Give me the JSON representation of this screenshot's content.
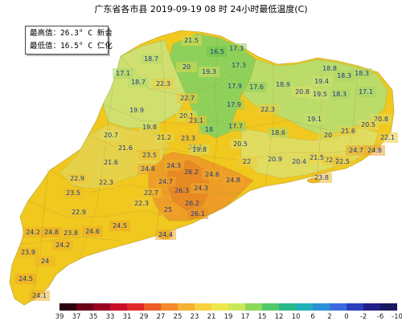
{
  "title": "广东省各市县 2019-09-19 08 时 24小时最低温度(C)",
  "info": {
    "max_line": "最高值：26.3° C 新会",
    "min_line": "最低值：16.5° C 仁化"
  },
  "map": {
    "region_fill": "#f0c81e",
    "stations": [
      {
        "v": "21.5",
        "c": "#e6d84a"
      },
      {
        "v": "16.5",
        "c": "#6cc24a"
      },
      {
        "v": "17.3",
        "c": "#8fd05a"
      },
      {
        "v": "18.7",
        "c": "#b6d86a"
      },
      {
        "v": "20",
        "c": "#d8d85a"
      },
      {
        "v": "19.3",
        "c": "#d4dc6a"
      },
      {
        "v": "17.3",
        "c": "#8fd05a"
      },
      {
        "v": "18.8",
        "c": "#b8dc6a"
      },
      {
        "v": "17.1",
        "c": "#a8d468"
      },
      {
        "v": "18.7",
        "c": "#b6d86a"
      },
      {
        "v": "22.3",
        "c": "#eecb3a"
      },
      {
        "v": "18.3",
        "c": "#aed466"
      },
      {
        "v": "19.4",
        "c": "#cce070"
      },
      {
        "v": "17.6",
        "c": "#8fd05a"
      },
      {
        "v": "18.9",
        "c": "#bcdc6a"
      },
      {
        "v": "18.3",
        "c": "#aed466"
      },
      {
        "v": "22.7",
        "c": "#eec534"
      },
      {
        "v": "20.8",
        "c": "#e0dc60"
      },
      {
        "v": "19.5",
        "c": "#cfe070"
      },
      {
        "v": "17.9",
        "c": "#90d05c"
      },
      {
        "v": "18.3",
        "c": "#aed466"
      },
      {
        "v": "17.1",
        "c": "#a8d468"
      },
      {
        "v": "19.9",
        "c": "#d6dc66"
      },
      {
        "v": "22.3",
        "c": "#eecb3a"
      },
      {
        "v": "20.1",
        "c": "#dcdc60"
      },
      {
        "v": "17.9",
        "c": "#90d05c"
      },
      {
        "v": "19.1",
        "c": "#c8dc6a"
      },
      {
        "v": "20.8",
        "c": "#e0dc60"
      },
      {
        "v": "19.8",
        "c": "#d4dc66"
      },
      {
        "v": "23.1",
        "c": "#f0c02e"
      },
      {
        "v": "18",
        "c": "#96d060"
      },
      {
        "v": "17.7",
        "c": "#90d05c"
      },
      {
        "v": "21.6",
        "c": "#e6d24a"
      },
      {
        "v": "20.5",
        "c": "#dedc60"
      },
      {
        "v": "20.7",
        "c": "#e0dc60"
      },
      {
        "v": "21.2",
        "c": "#e4d650"
      },
      {
        "v": "23.3",
        "c": "#f0be2c"
      },
      {
        "v": "18.6",
        "c": "#b4d868"
      },
      {
        "v": "20",
        "c": "#d8d85a"
      },
      {
        "v": "21.6",
        "c": "#e6d24a"
      },
      {
        "v": "23.1",
        "c": "#f0c02e"
      },
      {
        "v": "23.5",
        "c": "#f0bc2a"
      },
      {
        "v": "19.8",
        "c": "#d4dc66"
      },
      {
        "v": "20.5",
        "c": "#dedc60"
      },
      {
        "v": "22.1",
        "c": "#eccc3c"
      },
      {
        "v": "24.7",
        "c": "#eea628"
      },
      {
        "v": "24.8",
        "c": "#eea428"
      },
      {
        "v": "21.6",
        "c": "#e6d24a"
      },
      {
        "v": "22.5",
        "c": "#eec836"
      },
      {
        "v": "24.3",
        "c": "#efac28"
      },
      {
        "v": "26.2",
        "c": "#e88a24"
      },
      {
        "v": "24.6",
        "c": "#eea828"
      },
      {
        "v": "22",
        "c": "#eace3e"
      },
      {
        "v": "20.9",
        "c": "#e0da5c"
      },
      {
        "v": "20.4",
        "c": "#ddd860"
      },
      {
        "v": "21.5",
        "c": "#e6d24a"
      },
      {
        "v": "22.5",
        "c": "#eec836"
      },
      {
        "v": "22.9",
        "c": "#eec432"
      },
      {
        "v": "22.3",
        "c": "#eecb3a"
      },
      {
        "v": "24.7",
        "c": "#eea628"
      },
      {
        "v": "26.3",
        "c": "#e88822"
      },
      {
        "v": "24.3",
        "c": "#efac28"
      },
      {
        "v": "24.8",
        "c": "#eea428"
      },
      {
        "v": "23.8",
        "c": "#f0b82a"
      },
      {
        "v": "23.5",
        "c": "#f0bc2a"
      },
      {
        "v": "22.7",
        "c": "#eec534"
      },
      {
        "v": "22.3",
        "c": "#eecb3a"
      },
      {
        "v": "26.2",
        "c": "#e88a24"
      },
      {
        "v": "24.8",
        "c": "#eea428"
      },
      {
        "v": "25",
        "c": "#eea228"
      },
      {
        "v": "26.1",
        "c": "#e88c24"
      },
      {
        "v": "22.9",
        "c": "#eec432"
      },
      {
        "v": "24.2",
        "c": "#efae28"
      },
      {
        "v": "24.8",
        "c": "#eea428"
      },
      {
        "v": "23.8",
        "c": "#f0b82a"
      },
      {
        "v": "24.6",
        "c": "#eea828"
      },
      {
        "v": "24.5",
        "c": "#eea628"
      },
      {
        "v": "24.2",
        "c": "#efae28"
      },
      {
        "v": "24.4",
        "c": "#efaa28"
      },
      {
        "v": "23.9",
        "c": "#f0b62a"
      },
      {
        "v": "24",
        "c": "#efb228"
      },
      {
        "v": "24.5",
        "c": "#eea628"
      },
      {
        "v": "24.1",
        "c": "#efb028"
      }
    ]
  },
  "legend": {
    "colors": [
      "#2a0010",
      "#6a0018",
      "#9a0020",
      "#c8102a",
      "#e0282a",
      "#ee5a28",
      "#f48a2a",
      "#f6b032",
      "#f8d23c",
      "#f0e84a",
      "#cce85a",
      "#8ed85a",
      "#50c868",
      "#2ab88a",
      "#22b0b8",
      "#2a90d8",
      "#3a6ae0",
      "#2a40c0",
      "#20208a",
      "#181860"
    ],
    "ticks": [
      "39",
      "37",
      "35",
      "33",
      "31",
      "29",
      "27",
      "25",
      "23",
      "21",
      "19",
      "17",
      "15",
      "12",
      "10",
      "6",
      "2",
      "0",
      "-2",
      "-6",
      "-10"
    ]
  }
}
